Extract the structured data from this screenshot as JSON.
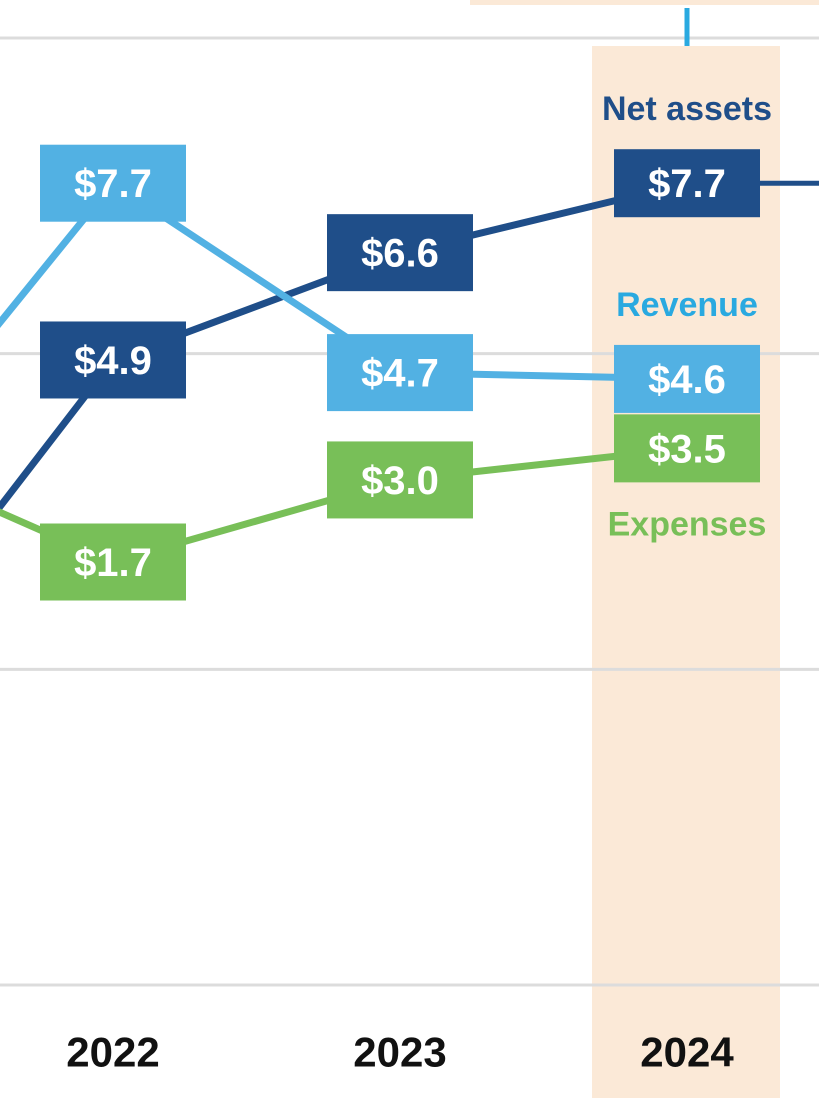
{
  "chart_data": {
    "type": "line",
    "categories": [
      null,
      "2022",
      "2023",
      "2024"
    ],
    "series": [
      {
        "name": "Net assets",
        "color": "#1f4e89",
        "values": [
          -1.0,
          4.9,
          6.6,
          7.7
        ],
        "value_labels": [
          null,
          "$4.9",
          "$6.6",
          "$7.7"
        ]
      },
      {
        "name": "Revenue",
        "color": "#52b1e3",
        "name_color": "#29a9e0",
        "values": [
          2.1,
          7.7,
          4.7,
          4.6
        ],
        "value_labels": [
          null,
          "$7.7",
          "$4.7",
          "$4.6"
        ]
      },
      {
        "name": "Expenses",
        "color": "#78bf58",
        "values": [
          3.7,
          1.7,
          3.0,
          3.5
        ],
        "value_labels": [
          null,
          "$1.7",
          "$3.0",
          "$3.5"
        ]
      }
    ],
    "ylim": [
      -5,
      10
    ],
    "yticks": [
      -5,
      0,
      5,
      10
    ],
    "grid": true,
    "highlight_category": 3,
    "highlight_color": "#fbe9d7"
  }
}
